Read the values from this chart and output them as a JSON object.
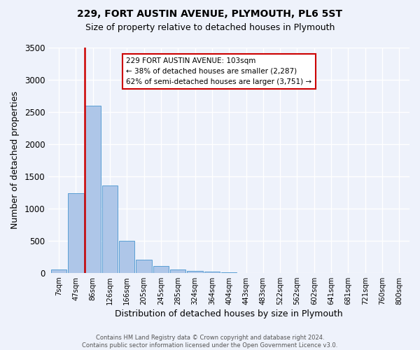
{
  "title": "229, FORT AUSTIN AVENUE, PLYMOUTH, PL6 5ST",
  "subtitle": "Size of property relative to detached houses in Plymouth",
  "xlabel": "Distribution of detached houses by size in Plymouth",
  "ylabel": "Number of detached properties",
  "bin_labels": [
    "7sqm",
    "47sqm",
    "86sqm",
    "126sqm",
    "166sqm",
    "205sqm",
    "245sqm",
    "285sqm",
    "324sqm",
    "364sqm",
    "404sqm",
    "443sqm",
    "483sqm",
    "522sqm",
    "562sqm",
    "602sqm",
    "641sqm",
    "681sqm",
    "721sqm",
    "760sqm",
    "800sqm"
  ],
  "bar_values": [
    50,
    1240,
    2590,
    1350,
    500,
    200,
    110,
    55,
    30,
    15,
    5,
    2,
    1,
    0,
    0,
    0,
    0,
    0,
    0,
    0,
    0
  ],
  "bar_color": "#aec6e8",
  "bar_edge_color": "#5a9fd4",
  "ylim": [
    0,
    3500
  ],
  "yticks": [
    0,
    500,
    1000,
    1500,
    2000,
    2500,
    3000,
    3500
  ],
  "property_line_bin": 2,
  "smaller_pct": 38,
  "smaller_count": 2287,
  "larger_pct": 62,
  "larger_count": 3751,
  "annotation_box_color": "#ffffff",
  "annotation_box_edge": "#cc0000",
  "property_line_color": "#cc0000",
  "footer_line1": "Contains HM Land Registry data © Crown copyright and database right 2024.",
  "footer_line2": "Contains public sector information licensed under the Open Government Licence v3.0.",
  "background_color": "#eef2fb",
  "grid_color": "#ffffff"
}
